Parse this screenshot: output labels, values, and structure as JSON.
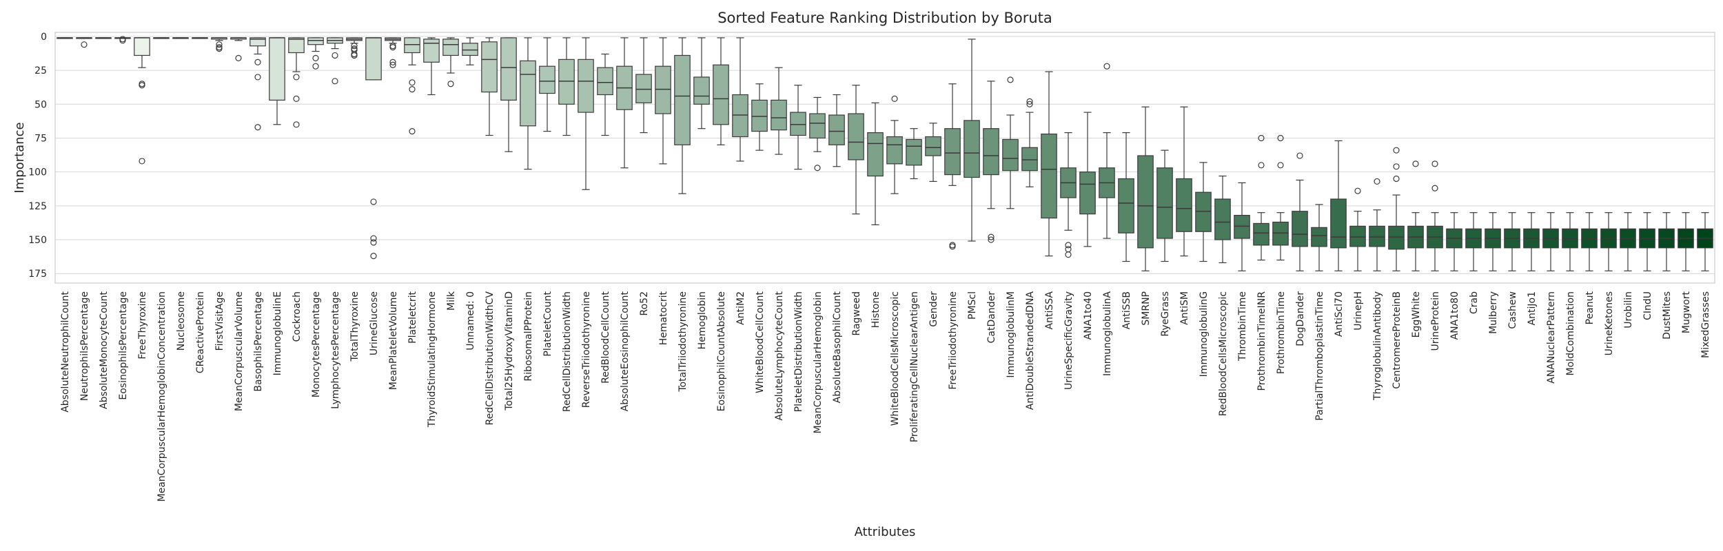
{
  "chart_data": {
    "type": "box",
    "title": "Sorted Feature Ranking Distribution by Boruta",
    "xlabel": "Attributes",
    "ylabel": "Importance",
    "y_ticks": [
      0,
      25,
      50,
      75,
      100,
      125,
      150,
      175
    ],
    "ylim": [
      182,
      -3
    ],
    "y_inverted": true,
    "grid": "horizontal",
    "color_scale": [
      "#f7fcf5",
      "#00441b"
    ],
    "categories": [
      "AbsoluteNeutrophilCount",
      "NeutrophilsPercentage",
      "AbsoluteMonocyteCount",
      "EosinophilsPercentage",
      "FreeThyroxine",
      "MeanCorpuscularHemoglobinConcentration",
      "Nucleosome",
      "CReactiveProtein",
      "FirstVisitAge",
      "MeanCorpuscularVolume",
      "BasophilsPercentage",
      "ImmunoglobulinE",
      "Cockroach",
      "MonocytesPercentage",
      "LymphocytesPercentage",
      "TotalThyroxine",
      "UrineGlucose",
      "MeanPlateletVolume",
      "Plateletcrit",
      "ThyroidStimulatingHormone",
      "Milk",
      "Unnamed: 0",
      "RedCellDistributionWidthCV",
      "Total25HydroxyVitaminD",
      "RibosomalPProtein",
      "PlateletCount",
      "RedCellDistributionWidth",
      "ReverseTriiodothyronine",
      "RedBloodCellCount",
      "AbsoluteEosinophilCount",
      "Ro52",
      "Hematocrit",
      "TotalTriiodothyronine",
      "Hemoglobin",
      "EosinophilCountAbsolute",
      "AntiM2",
      "WhiteBloodCellCount",
      "AbsoluteLymphocyteCount",
      "PlateletDistributionWidth",
      "MeanCorpuscularHemoglobin",
      "AbsoluteBasophilCount",
      "Ragweed",
      "Histone",
      "WhiteBloodCellsMicroscopic",
      "ProliferatingCellNuclearAntigen",
      "Gender",
      "FreeTriiodothyronine",
      "PMScl",
      "CatDander",
      "ImmunoglobulinM",
      "AntiDoubleStrandedDNA",
      "AntiSSA",
      "UrineSpecificGravity",
      "ANA1to40",
      "ImmunoglobulinA",
      "AntiSSB",
      "SMRNP",
      "RyeGrass",
      "AntiSM",
      "ImmunoglobulinG",
      "RedBloodCellsMicroscopic",
      "ThrombinTime",
      "ProthrombinTimeINR",
      "ProthrombinTime",
      "DogDander",
      "PartialThromboplastinTime",
      "AntiScl70",
      "UrinepH",
      "ThyroglobulinAntibody",
      "CentromereProteinB",
      "EggWhite",
      "UrineProtein",
      "ANA1to80",
      "Crab",
      "Mulberry",
      "Cashew",
      "AntiJo1",
      "ANANuclearPattern",
      "MoldCombination",
      "Peanut",
      "UrineKetones",
      "Urobilin",
      "CIndU",
      "DustMites",
      "Mugwort",
      "MixedGrasses"
    ],
    "boxes": [
      {
        "q1": 1,
        "med": 1,
        "q3": 1,
        "lo": 1,
        "hi": 1,
        "fliers": []
      },
      {
        "q1": 1,
        "med": 1,
        "q3": 1,
        "lo": 1,
        "hi": 1,
        "fliers": [
          6
        ]
      },
      {
        "q1": 1,
        "med": 1,
        "q3": 1,
        "lo": 1,
        "hi": 1,
        "fliers": []
      },
      {
        "q1": 1,
        "med": 1,
        "q3": 1,
        "lo": 1,
        "hi": 1,
        "fliers": [
          2,
          3
        ]
      },
      {
        "q1": 1,
        "med": 1,
        "q3": 14,
        "lo": 1,
        "hi": 23,
        "fliers": [
          35,
          36,
          92
        ]
      },
      {
        "q1": 1,
        "med": 1,
        "q3": 1,
        "lo": 1,
        "hi": 1,
        "fliers": []
      },
      {
        "q1": 1,
        "med": 1,
        "q3": 1,
        "lo": 1,
        "hi": 1,
        "fliers": []
      },
      {
        "q1": 1,
        "med": 1,
        "q3": 1,
        "lo": 1,
        "hi": 1,
        "fliers": []
      },
      {
        "q1": 1,
        "med": 1,
        "q3": 2,
        "lo": 1,
        "hi": 3,
        "fliers": [
          6,
          8,
          9
        ]
      },
      {
        "q1": 1,
        "med": 1,
        "q3": 2,
        "lo": 1,
        "hi": 3,
        "fliers": [
          16
        ]
      },
      {
        "q1": 1,
        "med": 2,
        "q3": 7,
        "lo": 1,
        "hi": 13,
        "fliers": [
          19,
          30,
          67
        ]
      },
      {
        "q1": 1,
        "med": 1,
        "q3": 47,
        "lo": 1,
        "hi": 65,
        "fliers": []
      },
      {
        "q1": 1,
        "med": 2,
        "q3": 12,
        "lo": 1,
        "hi": 26,
        "fliers": [
          30,
          46,
          65
        ]
      },
      {
        "q1": 1,
        "med": 3,
        "q3": 6,
        "lo": 1,
        "hi": 11,
        "fliers": [
          16,
          22
        ]
      },
      {
        "q1": 1,
        "med": 3,
        "q3": 5,
        "lo": 1,
        "hi": 9,
        "fliers": [
          14,
          33
        ]
      },
      {
        "q1": 1,
        "med": 2,
        "q3": 3,
        "lo": 1,
        "hi": 5,
        "fliers": [
          7,
          9,
          10,
          13,
          14
        ]
      },
      {
        "q1": 1,
        "med": 1,
        "q3": 32,
        "lo": 1,
        "hi": 32,
        "fliers": [
          122,
          149,
          152,
          162
        ]
      },
      {
        "q1": 1,
        "med": 2,
        "q3": 3,
        "lo": 1,
        "hi": 5,
        "fliers": [
          7,
          8,
          19,
          21
        ]
      },
      {
        "q1": 1,
        "med": 6,
        "q3": 12,
        "lo": 1,
        "hi": 21,
        "fliers": [
          34,
          39,
          70
        ]
      },
      {
        "q1": 2,
        "med": 5,
        "q3": 19,
        "lo": 1,
        "hi": 43,
        "fliers": []
      },
      {
        "q1": 2,
        "med": 6,
        "q3": 14,
        "lo": 1,
        "hi": 27,
        "fliers": [
          35
        ]
      },
      {
        "q1": 5,
        "med": 10,
        "q3": 14,
        "lo": 1,
        "hi": 21,
        "fliers": []
      },
      {
        "q1": 4,
        "med": 17,
        "q3": 41,
        "lo": 1,
        "hi": 73,
        "fliers": []
      },
      {
        "q1": 1,
        "med": 23,
        "q3": 47,
        "lo": 1,
        "hi": 85,
        "fliers": []
      },
      {
        "q1": 18,
        "med": 28,
        "q3": 66,
        "lo": 1,
        "hi": 98,
        "fliers": []
      },
      {
        "q1": 22,
        "med": 33,
        "q3": 42,
        "lo": 1,
        "hi": 70,
        "fliers": []
      },
      {
        "q1": 17,
        "med": 33,
        "q3": 50,
        "lo": 1,
        "hi": 73,
        "fliers": []
      },
      {
        "q1": 17,
        "med": 33,
        "q3": 56,
        "lo": 1,
        "hi": 113,
        "fliers": []
      },
      {
        "q1": 23,
        "med": 34,
        "q3": 43,
        "lo": 13,
        "hi": 73,
        "fliers": []
      },
      {
        "q1": 22,
        "med": 38,
        "q3": 54,
        "lo": 1,
        "hi": 97,
        "fliers": []
      },
      {
        "q1": 28,
        "med": 39,
        "q3": 49,
        "lo": 1,
        "hi": 71,
        "fliers": []
      },
      {
        "q1": 22,
        "med": 39,
        "q3": 57,
        "lo": 1,
        "hi": 94,
        "fliers": []
      },
      {
        "q1": 14,
        "med": 44,
        "q3": 80,
        "lo": 1,
        "hi": 116,
        "fliers": []
      },
      {
        "q1": 30,
        "med": 44,
        "q3": 50,
        "lo": 1,
        "hi": 68,
        "fliers": []
      },
      {
        "q1": 21,
        "med": 46,
        "q3": 65,
        "lo": 1,
        "hi": 80,
        "fliers": []
      },
      {
        "q1": 43,
        "med": 58,
        "q3": 74,
        "lo": 1,
        "hi": 92,
        "fliers": []
      },
      {
        "q1": 47,
        "med": 59,
        "q3": 70,
        "lo": 35,
        "hi": 84,
        "fliers": []
      },
      {
        "q1": 47,
        "med": 60,
        "q3": 69,
        "lo": 23,
        "hi": 87,
        "fliers": []
      },
      {
        "q1": 56,
        "med": 65,
        "q3": 73,
        "lo": 36,
        "hi": 98,
        "fliers": []
      },
      {
        "q1": 57,
        "med": 64,
        "q3": 75,
        "lo": 45,
        "hi": 85,
        "fliers": [
          97
        ]
      },
      {
        "q1": 58,
        "med": 70,
        "q3": 80,
        "lo": 43,
        "hi": 96,
        "fliers": []
      },
      {
        "q1": 57,
        "med": 78,
        "q3": 91,
        "lo": 36,
        "hi": 131,
        "fliers": []
      },
      {
        "q1": 71,
        "med": 79,
        "q3": 103,
        "lo": 49,
        "hi": 139,
        "fliers": []
      },
      {
        "q1": 74,
        "med": 80,
        "q3": 94,
        "lo": 62,
        "hi": 116,
        "fliers": [
          46
        ]
      },
      {
        "q1": 76,
        "med": 81,
        "q3": 95,
        "lo": 68,
        "hi": 105,
        "fliers": []
      },
      {
        "q1": 74,
        "med": 82,
        "q3": 88,
        "lo": 64,
        "hi": 107,
        "fliers": []
      },
      {
        "q1": 68,
        "med": 86,
        "q3": 102,
        "lo": 35,
        "hi": 110,
        "fliers": [
          154,
          155
        ]
      },
      {
        "q1": 62,
        "med": 86,
        "q3": 104,
        "lo": 2,
        "hi": 151,
        "fliers": []
      },
      {
        "q1": 68,
        "med": 88,
        "q3": 102,
        "lo": 33,
        "hi": 127,
        "fliers": [
          148,
          150
        ]
      },
      {
        "q1": 76,
        "med": 90,
        "q3": 99,
        "lo": 58,
        "hi": 127,
        "fliers": [
          32
        ]
      },
      {
        "q1": 82,
        "med": 91,
        "q3": 99,
        "lo": 56,
        "hi": 111,
        "fliers": [
          48,
          50
        ]
      },
      {
        "q1": 72,
        "med": 98,
        "q3": 134,
        "lo": 26,
        "hi": 162,
        "fliers": []
      },
      {
        "q1": 97,
        "med": 108,
        "q3": 119,
        "lo": 71,
        "hi": 143,
        "fliers": [
          154,
          157,
          161
        ]
      },
      {
        "q1": 100,
        "med": 109,
        "q3": 131,
        "lo": 56,
        "hi": 155,
        "fliers": []
      },
      {
        "q1": 97,
        "med": 108,
        "q3": 119,
        "lo": 71,
        "hi": 149,
        "fliers": [
          22
        ]
      },
      {
        "q1": 105,
        "med": 123,
        "q3": 145,
        "lo": 71,
        "hi": 166,
        "fliers": []
      },
      {
        "q1": 88,
        "med": 125,
        "q3": 156,
        "lo": 52,
        "hi": 173,
        "fliers": []
      },
      {
        "q1": 97,
        "med": 126,
        "q3": 149,
        "lo": 84,
        "hi": 166,
        "fliers": []
      },
      {
        "q1": 105,
        "med": 127,
        "q3": 144,
        "lo": 52,
        "hi": 162,
        "fliers": []
      },
      {
        "q1": 115,
        "med": 129,
        "q3": 144,
        "lo": 93,
        "hi": 166,
        "fliers": []
      },
      {
        "q1": 120,
        "med": 137,
        "q3": 150,
        "lo": 103,
        "hi": 167,
        "fliers": []
      },
      {
        "q1": 132,
        "med": 140,
        "q3": 149,
        "lo": 108,
        "hi": 173,
        "fliers": []
      },
      {
        "q1": 138,
        "med": 145,
        "q3": 154,
        "lo": 130,
        "hi": 165,
        "fliers": [
          75,
          95
        ]
      },
      {
        "q1": 137,
        "med": 145,
        "q3": 154,
        "lo": 130,
        "hi": 165,
        "fliers": [
          75,
          95
        ]
      },
      {
        "q1": 129,
        "med": 146,
        "q3": 155,
        "lo": 106,
        "hi": 173,
        "fliers": [
          88
        ]
      },
      {
        "q1": 141,
        "med": 147,
        "q3": 155,
        "lo": 124,
        "hi": 173,
        "fliers": []
      },
      {
        "q1": 120,
        "med": 148,
        "q3": 156,
        "lo": 77,
        "hi": 173,
        "fliers": []
      },
      {
        "q1": 140,
        "med": 148,
        "q3": 155,
        "lo": 129,
        "hi": 173,
        "fliers": [
          114
        ]
      },
      {
        "q1": 140,
        "med": 148,
        "q3": 155,
        "lo": 128,
        "hi": 173,
        "fliers": [
          107
        ]
      },
      {
        "q1": 140,
        "med": 148,
        "q3": 157,
        "lo": 117,
        "hi": 173,
        "fliers": [
          84,
          96,
          105
        ]
      },
      {
        "q1": 140,
        "med": 148,
        "q3": 156,
        "lo": 130,
        "hi": 173,
        "fliers": [
          94
        ]
      },
      {
        "q1": 140,
        "med": 148,
        "q3": 156,
        "lo": 130,
        "hi": 173,
        "fliers": [
          94,
          112
        ]
      },
      {
        "q1": 142,
        "med": 149,
        "q3": 156,
        "lo": 130,
        "hi": 173,
        "fliers": []
      },
      {
        "q1": 142,
        "med": 149,
        "q3": 156,
        "lo": 130,
        "hi": 173,
        "fliers": []
      },
      {
        "q1": 142,
        "med": 149,
        "q3": 156,
        "lo": 130,
        "hi": 173,
        "fliers": []
      },
      {
        "q1": 142,
        "med": 149,
        "q3": 156,
        "lo": 130,
        "hi": 173,
        "fliers": []
      },
      {
        "q1": 142,
        "med": 149,
        "q3": 156,
        "lo": 130,
        "hi": 173,
        "fliers": []
      },
      {
        "q1": 142,
        "med": 149,
        "q3": 156,
        "lo": 130,
        "hi": 173,
        "fliers": []
      },
      {
        "q1": 142,
        "med": 149,
        "q3": 156,
        "lo": 130,
        "hi": 173,
        "fliers": []
      },
      {
        "q1": 142,
        "med": 149,
        "q3": 156,
        "lo": 130,
        "hi": 173,
        "fliers": []
      },
      {
        "q1": 142,
        "med": 149,
        "q3": 156,
        "lo": 130,
        "hi": 173,
        "fliers": []
      },
      {
        "q1": 142,
        "med": 149,
        "q3": 156,
        "lo": 130,
        "hi": 173,
        "fliers": []
      },
      {
        "q1": 142,
        "med": 149,
        "q3": 156,
        "lo": 130,
        "hi": 173,
        "fliers": []
      },
      {
        "q1": 142,
        "med": 149,
        "q3": 156,
        "lo": 130,
        "hi": 173,
        "fliers": []
      },
      {
        "q1": 142,
        "med": 149,
        "q3": 156,
        "lo": 130,
        "hi": 173,
        "fliers": []
      },
      {
        "q1": 142,
        "med": 149,
        "q3": 156,
        "lo": 130,
        "hi": 173,
        "fliers": []
      }
    ]
  }
}
